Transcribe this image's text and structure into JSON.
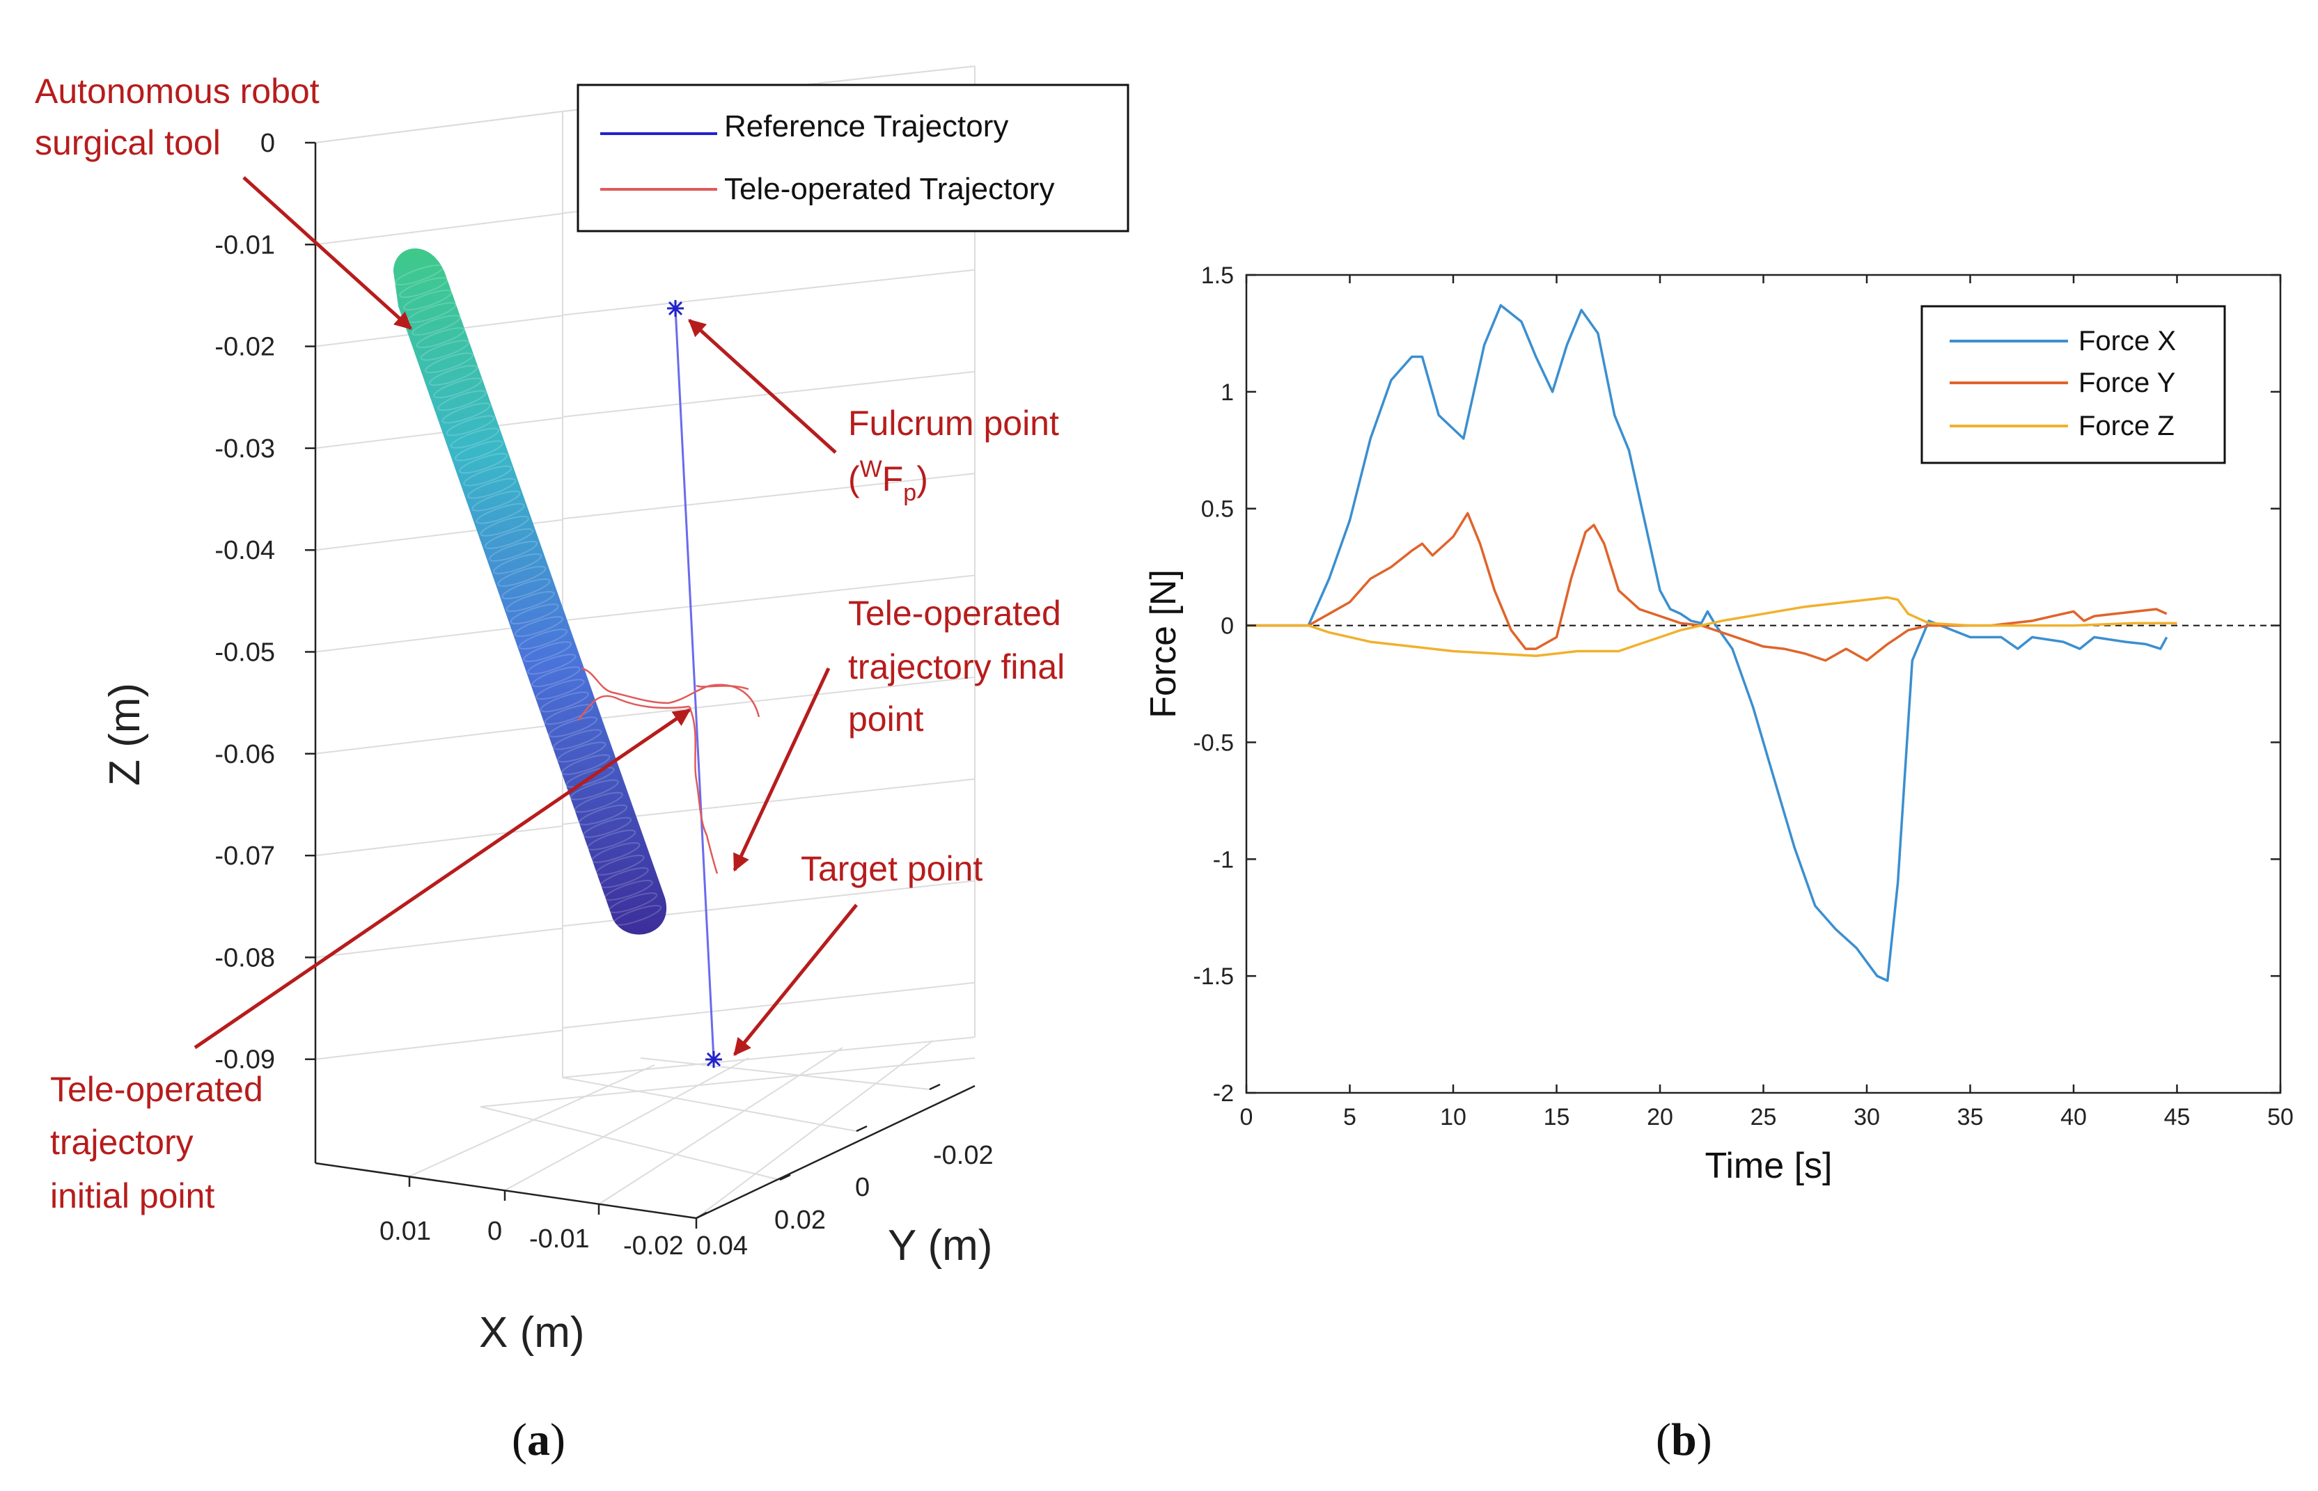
{
  "colors": {
    "red_annotation": "#b71c1c",
    "reference_line": "#2222cc",
    "teleop_line": "#e05a5a",
    "force_x": "#3b8fd0",
    "force_y": "#e0642a",
    "force_z": "#f0b12e",
    "grid": "#d8d8d8",
    "axis": "#222222"
  },
  "panel_a": {
    "caption_open": "(",
    "caption_letter": "a",
    "caption_close": ")",
    "legend": [
      {
        "label": "Reference Trajectory",
        "color": "#2222cc"
      },
      {
        "label": "Tele-operated Trajectory",
        "color": "#e05a5a"
      }
    ],
    "annotations": {
      "tool": [
        "Autonomous robot",
        "surgical tool"
      ],
      "fulcrum": [
        "Fulcrum point"
      ],
      "fulcrum_sym": {
        "open": "(",
        "sup": "W",
        "main": "F",
        "sub": "p",
        "close": ")"
      },
      "final": [
        "Tele-operated",
        "trajectory final",
        "point"
      ],
      "target": [
        "Target point"
      ],
      "initial": [
        "Tele-operated",
        "trajectory",
        "initial point"
      ]
    },
    "z_axis": {
      "label": "Z (m)",
      "ticks": [
        "0",
        "-0.01",
        "-0.02",
        "-0.03",
        "-0.04",
        "-0.05",
        "-0.06",
        "-0.07",
        "-0.08",
        "-0.09"
      ]
    },
    "x_axis": {
      "label": "X (m)",
      "ticks": [
        "0.01",
        "0",
        "-0.01",
        "-0.02"
      ]
    },
    "y_axis": {
      "label": "Y (m)",
      "ticks": [
        "0.04",
        "0.02",
        "0",
        "-0.02"
      ]
    }
  },
  "chart_data": {
    "type": "line",
    "panel": "b",
    "caption_open": "(",
    "caption_letter": "b",
    "caption_close": ")",
    "xlabel": "Time [s]",
    "ylabel": "Force [N]",
    "xlim": [
      0,
      50
    ],
    "ylim": [
      -2,
      1.5
    ],
    "xticks": [
      0,
      5,
      10,
      15,
      20,
      25,
      30,
      35,
      40,
      45,
      50
    ],
    "yticks": [
      1.5,
      1,
      0.5,
      0,
      -0.5,
      -1,
      -1.5,
      -2
    ],
    "ytick_labels": [
      "1.5",
      "1",
      "0.5",
      "0",
      "-0.5",
      "-1",
      "-1.5",
      "-2"
    ],
    "zero_line": "dashed",
    "legend_position": "top-right",
    "series": [
      {
        "name": "Force X",
        "color": "#3b8fd0",
        "x": [
          0,
          3,
          4,
          5,
          6,
          7,
          8,
          8.5,
          9.3,
          10.5,
          11.5,
          12.3,
          13.3,
          14,
          14.8,
          15.5,
          16.2,
          17,
          17.8,
          18.5,
          19.5,
          20,
          20.5,
          21,
          21.5,
          22,
          22.3,
          22.7,
          23.5,
          24.5,
          25.5,
          26.5,
          27.5,
          28.5,
          29.5,
          30.5,
          31,
          31.5,
          32.2,
          33,
          35,
          36.5,
          37.3,
          38,
          39.5,
          40.3,
          41,
          42.5,
          43.5,
          44.2,
          44.5
        ],
        "y": [
          0,
          0,
          0.2,
          0.45,
          0.8,
          1.05,
          1.15,
          1.15,
          0.9,
          0.8,
          1.2,
          1.37,
          1.3,
          1.15,
          1.0,
          1.2,
          1.35,
          1.25,
          0.9,
          0.75,
          0.35,
          0.15,
          0.07,
          0.05,
          0.02,
          0.01,
          0.06,
          0.0,
          -0.1,
          -0.35,
          -0.65,
          -0.95,
          -1.2,
          -1.3,
          -1.38,
          -1.5,
          -1.52,
          -1.1,
          -0.15,
          0.02,
          -0.05,
          -0.05,
          -0.1,
          -0.05,
          -0.07,
          -0.1,
          -0.05,
          -0.07,
          -0.08,
          -0.1,
          -0.05
        ]
      },
      {
        "name": "Force Y",
        "color": "#e0642a",
        "x": [
          0,
          3,
          4,
          5,
          6,
          7,
          8,
          8.5,
          9,
          10,
          10.7,
          11.3,
          12,
          12.8,
          13.5,
          14,
          15,
          15.7,
          16.4,
          16.8,
          17.3,
          18,
          19,
          20,
          21,
          22,
          23,
          24,
          25,
          26,
          27,
          28,
          29,
          30,
          31,
          31.5,
          32,
          33,
          34,
          35,
          36,
          37,
          38,
          39,
          40,
          40.5,
          41,
          42,
          43,
          44,
          44.5
        ],
        "y": [
          0,
          0,
          0.05,
          0.1,
          0.2,
          0.25,
          0.32,
          0.35,
          0.3,
          0.38,
          0.48,
          0.35,
          0.15,
          -0.02,
          -0.1,
          -0.1,
          -0.05,
          0.2,
          0.4,
          0.43,
          0.35,
          0.15,
          0.07,
          0.04,
          0.01,
          0.0,
          -0.03,
          -0.06,
          -0.09,
          -0.1,
          -0.12,
          -0.15,
          -0.1,
          -0.15,
          -0.08,
          -0.05,
          -0.02,
          0.0,
          0.0,
          0.0,
          0.0,
          0.01,
          0.02,
          0.04,
          0.06,
          0.02,
          0.04,
          0.05,
          0.06,
          0.07,
          0.05
        ]
      },
      {
        "name": "Force Z",
        "color": "#f0b12e",
        "x": [
          0,
          3,
          4,
          6,
          8,
          10,
          12,
          14,
          15,
          16,
          18,
          19,
          20,
          21,
          22,
          23,
          25,
          27,
          29,
          30,
          31,
          31.5,
          32,
          33,
          35,
          37,
          40,
          43,
          45
        ],
        "y": [
          0,
          0,
          -0.03,
          -0.07,
          -0.09,
          -0.11,
          -0.12,
          -0.13,
          -0.12,
          -0.11,
          -0.11,
          -0.08,
          -0.05,
          -0.02,
          0.0,
          0.02,
          0.05,
          0.08,
          0.1,
          0.11,
          0.12,
          0.11,
          0.05,
          0.01,
          0.0,
          0.0,
          0.0,
          0.01,
          0.01
        ]
      }
    ]
  }
}
